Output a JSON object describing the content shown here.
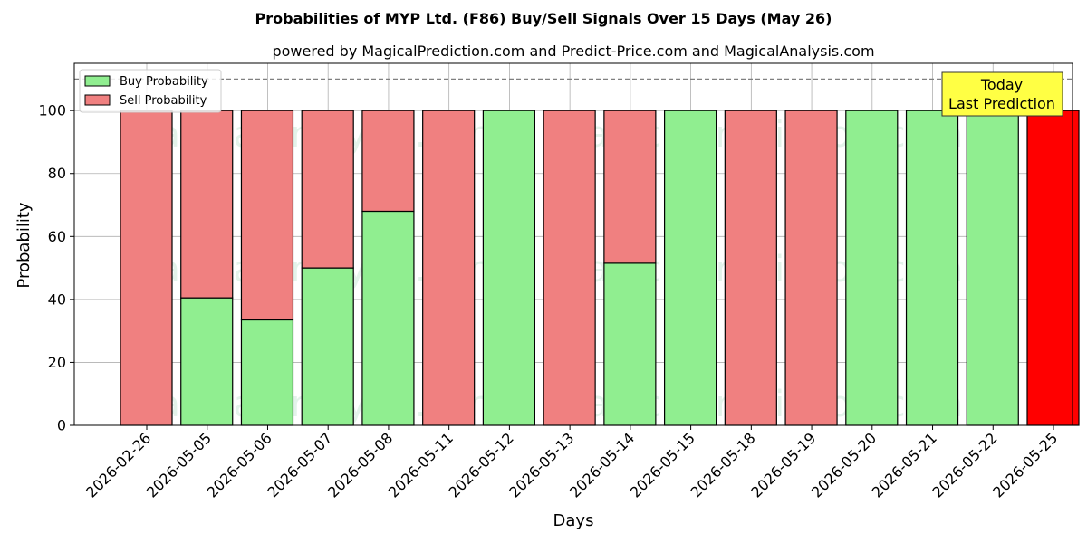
{
  "chart_data": {
    "type": "bar",
    "title": "Probabilities of MYP Ltd. (F86) Buy/Sell Signals Over 15 Days (May 26)",
    "subtitle": "powered by MagicalPrediction.com and Predict-Price.com and MagicalAnalysis.com",
    "xlabel": "Days",
    "ylabel": "Probability",
    "ylim": [
      0,
      115
    ],
    "yticks": [
      0,
      20,
      40,
      60,
      80,
      100
    ],
    "reference_line": 110,
    "grid": true,
    "legend_position": "top-left",
    "categories": [
      "2026-02-26",
      "2026-05-05",
      "2026-05-06",
      "2026-05-07",
      "2026-05-08",
      "2026-05-11",
      "2026-05-12",
      "2026-05-13",
      "2026-05-14",
      "2026-05-15",
      "2026-05-18",
      "2026-05-19",
      "2026-05-20",
      "2026-05-21",
      "2026-05-22",
      "2026-05-25"
    ],
    "series": [
      {
        "name": "Buy Probability",
        "color": "#90ee90",
        "values": [
          0,
          40.5,
          33.5,
          50,
          68,
          0,
          100,
          0,
          51.5,
          100,
          0,
          0,
          100,
          100,
          100,
          0
        ]
      },
      {
        "name": "Sell Probability",
        "color": "#f08080",
        "values": [
          100,
          59.5,
          66.5,
          50,
          32,
          100,
          0,
          100,
          48.5,
          0,
          100,
          100,
          0,
          0,
          0,
          100
        ]
      }
    ],
    "highlight": {
      "index": 15,
      "color": "#ff0000"
    },
    "annotation": {
      "lines": [
        "Today",
        "Last Prediction"
      ],
      "color": "#ffff44"
    },
    "watermarks": [
      "MagicalAnalysis.com",
      "MagicalPrediction.com"
    ]
  }
}
